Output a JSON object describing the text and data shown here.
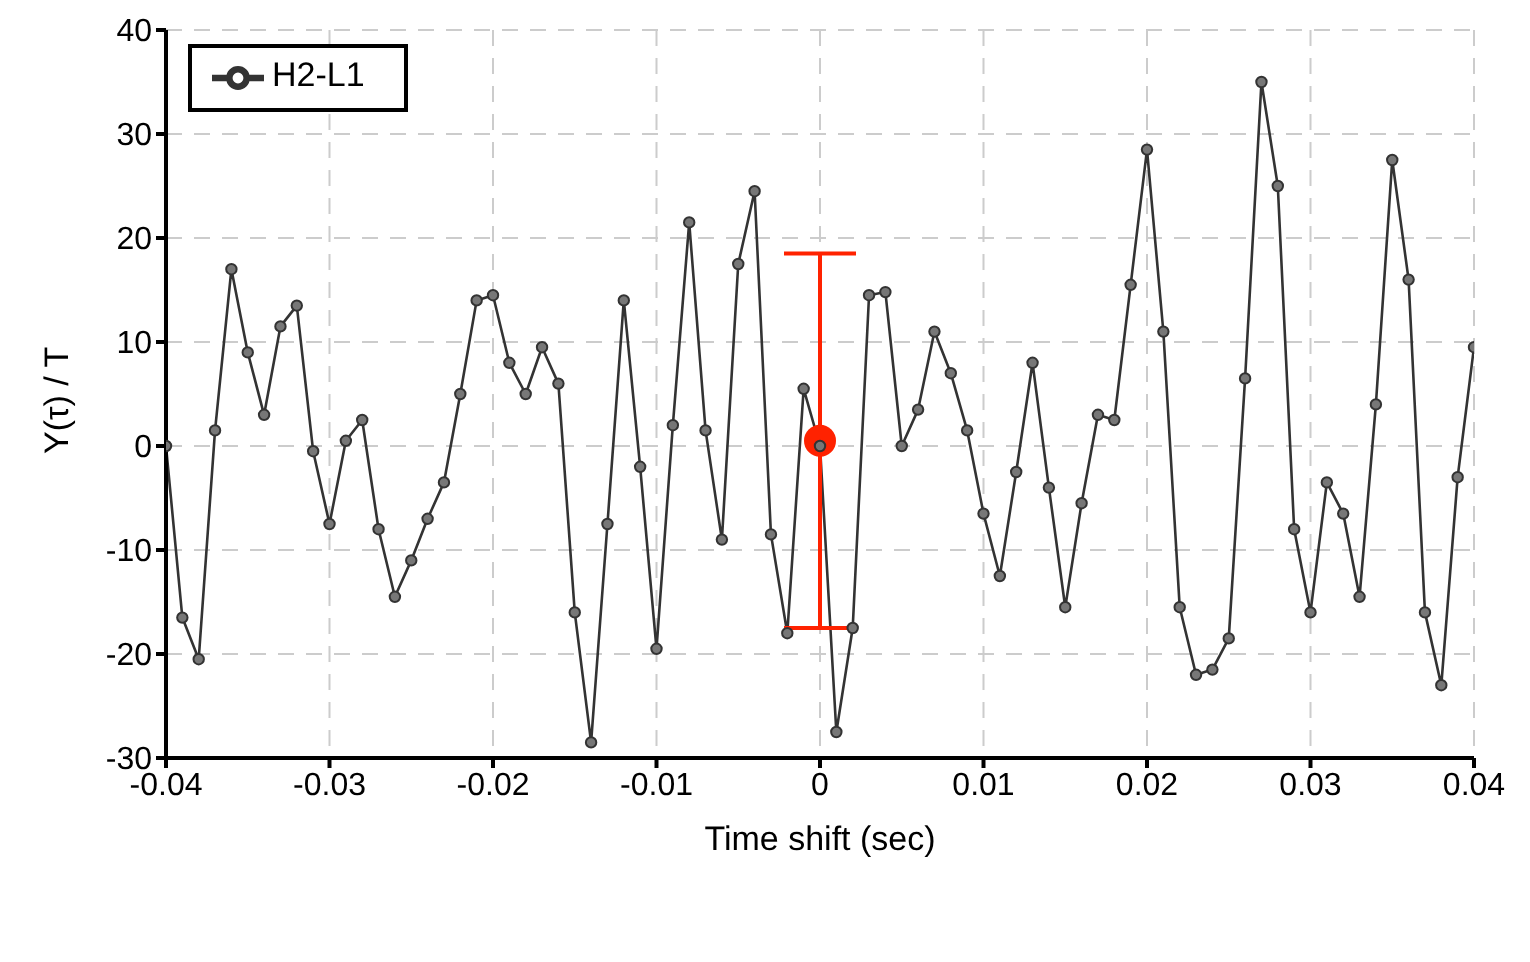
{
  "chart_data": {
    "type": "line",
    "xlabel": "Time shift (sec)",
    "ylabel": "Y(τ) / T",
    "xlim": [
      -0.04,
      0.04
    ],
    "xticks": [
      -0.04,
      -0.03,
      -0.02,
      -0.01,
      0,
      0.01,
      0.02,
      0.03,
      0.04
    ],
    "ylim": [
      -30,
      40
    ],
    "yticks": [
      -30,
      -20,
      -10,
      0,
      10,
      20,
      30,
      40
    ],
    "grid": true,
    "legend": "top left",
    "marker": "circle",
    "line_style": "solid",
    "series": [
      {
        "name": "H2-L1",
        "color": "#333333",
        "x": [
          -0.04,
          -0.039,
          -0.038,
          -0.037,
          -0.036,
          -0.035,
          -0.034,
          -0.033,
          -0.032,
          -0.031,
          -0.03,
          -0.029,
          -0.028,
          -0.027,
          -0.026,
          -0.025,
          -0.024,
          -0.023,
          -0.022,
          -0.021,
          -0.02,
          -0.019,
          -0.018,
          -0.017,
          -0.016,
          -0.015,
          -0.014,
          -0.013,
          -0.012,
          -0.011,
          -0.01,
          -0.009,
          -0.008,
          -0.007,
          -0.006,
          -0.005,
          -0.004,
          -0.003,
          -0.002,
          -0.001,
          0.0,
          0.001,
          0.002,
          0.003,
          0.004,
          0.005,
          0.006,
          0.007,
          0.008,
          0.009,
          0.01,
          0.011,
          0.012,
          0.013,
          0.014,
          0.015,
          0.016,
          0.017,
          0.018,
          0.019,
          0.02,
          0.021,
          0.022,
          0.023,
          0.024,
          0.025,
          0.026,
          0.027,
          0.028,
          0.029,
          0.03,
          0.031,
          0.032,
          0.033,
          0.034,
          0.035,
          0.036,
          0.037,
          0.038,
          0.039,
          0.04
        ],
        "values": [
          0,
          -16.5,
          -20.5,
          1.5,
          17,
          9,
          3,
          11.5,
          13.5,
          -0.5,
          -7.5,
          0.5,
          2.5,
          -8,
          -14.5,
          -11,
          -7,
          -3.5,
          5,
          14,
          14.5,
          8,
          5,
          9.5,
          6,
          -16,
          -28.5,
          -7.5,
          14,
          -2,
          -19.5,
          2,
          21.5,
          1.5,
          -9,
          17.5,
          24.5,
          -8.5,
          -18,
          5.5,
          0,
          -27.5,
          -17.5,
          14.5,
          14.8,
          0,
          3.5,
          11,
          7,
          1.5,
          -6.5,
          -12.5,
          -2.5,
          8,
          -4,
          -15.5,
          -5.5,
          3,
          2.5,
          15.5,
          28.5,
          11,
          -15.5,
          -22,
          -21.5,
          -18.5,
          6.5,
          35,
          25,
          -8,
          -16,
          -3.5,
          -6.5,
          -14.5,
          4,
          27.5,
          16,
          -16,
          -23,
          -3,
          9.5
        ]
      },
      {
        "type": "scatter",
        "color": "#ff2200",
        "x": [
          0
        ],
        "values": [
          0.5
        ],
        "errors": [
          [
            -17.5,
            18.5
          ]
        ]
      }
    ]
  }
}
